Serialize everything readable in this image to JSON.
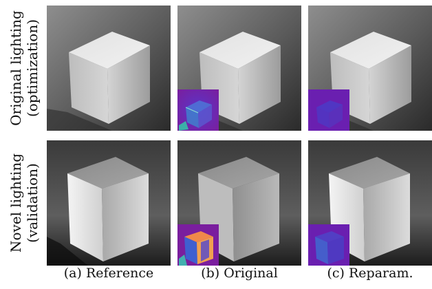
{
  "rows": [
    {
      "line1": "Original lighting",
      "line2": "(optimization)"
    },
    {
      "line1": "Novel lighting",
      "line2": "(validation)"
    }
  ],
  "captions": {
    "reference": "(a) Reference",
    "original": "(b) Original",
    "reparam": "(c) Reparam."
  },
  "colors": {
    "background": "#ffffff",
    "text": "#111111",
    "error_map_base": "#6a1fb0",
    "error_map_high": "#f0884a"
  }
}
